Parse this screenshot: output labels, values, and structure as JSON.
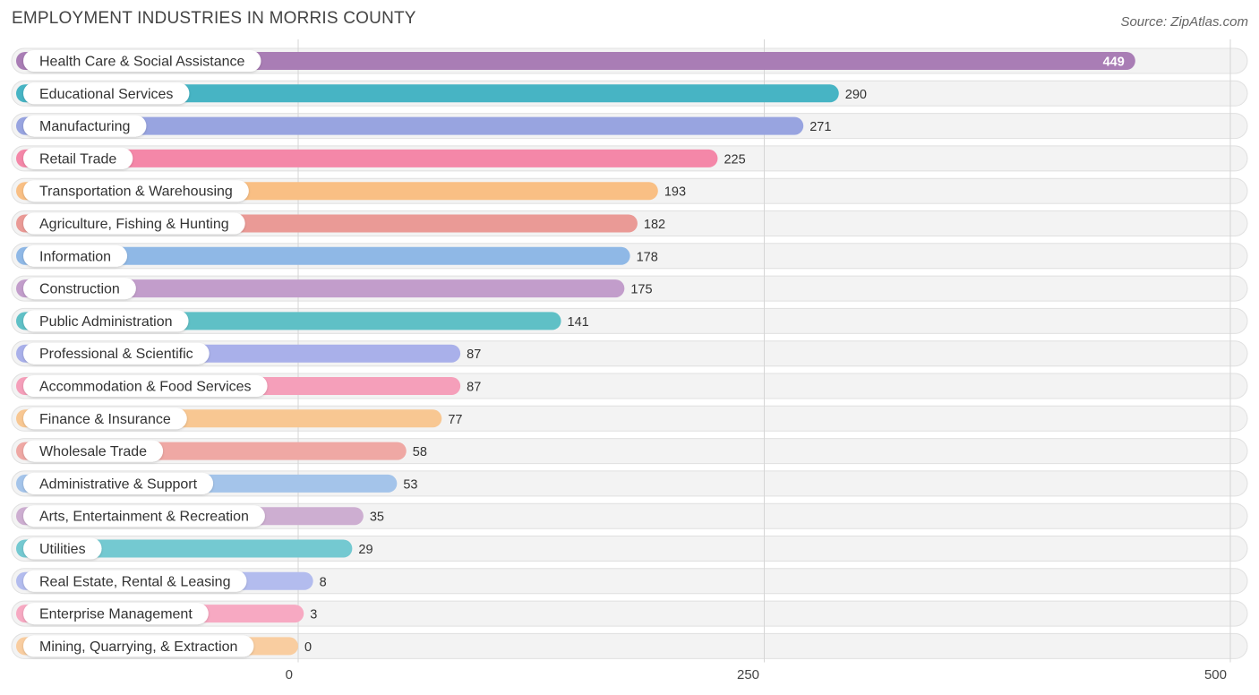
{
  "header": {
    "title": "EMPLOYMENT INDUSTRIES IN MORRIS COUNTY",
    "source": "Source: ZipAtlas.com"
  },
  "chart_data": {
    "type": "bar",
    "orientation": "horizontal",
    "title": "EMPLOYMENT INDUSTRIES IN MORRIS COUNTY",
    "xlabel": "",
    "ylabel": "",
    "xlim": [
      0,
      500
    ],
    "ticks": [
      0,
      250,
      500
    ],
    "tick_labels": [
      "0",
      "250",
      "500"
    ],
    "grid": true,
    "categories": [
      "Health Care & Social Assistance",
      "Educational Services",
      "Manufacturing",
      "Retail Trade",
      "Transportation & Warehousing",
      "Agriculture, Fishing & Hunting",
      "Information",
      "Construction",
      "Public Administration",
      "Professional & Scientific",
      "Accommodation & Food Services",
      "Finance & Insurance",
      "Wholesale Trade",
      "Administrative & Support",
      "Arts, Entertainment & Recreation",
      "Utilities",
      "Real Estate, Rental & Leasing",
      "Enterprise Management",
      "Mining, Quarrying, & Extraction"
    ],
    "values": [
      449,
      290,
      271,
      225,
      193,
      182,
      178,
      175,
      141,
      87,
      87,
      77,
      58,
      53,
      35,
      29,
      8,
      3,
      0
    ],
    "colors": [
      "#a97db5",
      "#47b4c4",
      "#98a4e0",
      "#f487a8",
      "#f9bf84",
      "#ea9a96",
      "#8fb8e6",
      "#c29dcb",
      "#5fc0c6",
      "#a9b0ea",
      "#f59fba",
      "#f8c792",
      "#efa8a4",
      "#a4c4ea",
      "#cdaed1",
      "#74c9d1",
      "#b3bcee",
      "#f7a9c2",
      "#f9cda0"
    ]
  }
}
